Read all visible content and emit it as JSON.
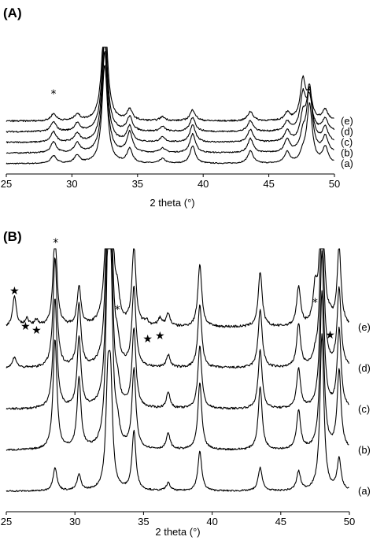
{
  "chart_data": [
    {
      "panel": "(A)",
      "type": "line",
      "xlabel": "2 theta (°)",
      "ylabel": "",
      "xlim": [
        25,
        50
      ],
      "xticks": [
        25,
        30,
        35,
        40,
        45,
        50
      ],
      "grid": false,
      "series": [
        {
          "name": "(a)",
          "offset": 0
        },
        {
          "name": "(b)",
          "offset": 1
        },
        {
          "name": "(c)",
          "offset": 2
        },
        {
          "name": "(d)",
          "offset": 3
        },
        {
          "name": "(e)",
          "offset": 4
        }
      ],
      "peaks": [
        {
          "x": 28.6,
          "h": [
            10,
            14,
            13,
            12,
            9
          ]
        },
        {
          "x": 30.4,
          "h": [
            10,
            12,
            11,
            10,
            8
          ]
        },
        {
          "x": 32.5,
          "h": [
            125,
            128,
            130,
            132,
            142
          ]
        },
        {
          "x": 34.4,
          "h": [
            18,
            26,
            20,
            18,
            14
          ]
        },
        {
          "x": 36.9,
          "h": [
            6,
            6,
            6,
            6,
            5
          ]
        },
        {
          "x": 39.2,
          "h": [
            22,
            24,
            22,
            18,
            14
          ]
        },
        {
          "x": 43.6,
          "h": [
            16,
            18,
            16,
            14,
            12
          ]
        },
        {
          "x": 46.4,
          "h": [
            14,
            16,
            14,
            12,
            10
          ]
        },
        {
          "x": 47.6,
          "h": [
            10,
            20,
            30,
            45,
            50
          ]
        },
        {
          "x": 48.1,
          "h": [
            74,
            80,
            68,
            40,
            30
          ]
        },
        {
          "x": 49.3,
          "h": [
            20,
            20,
            18,
            16,
            14
          ]
        }
      ],
      "annotations": [
        {
          "text": "*",
          "x": 28.6,
          "series": "(e)"
        }
      ]
    },
    {
      "panel": "(B)",
      "type": "line",
      "xlabel": "2 theta (°)",
      "ylabel": "",
      "xlim": [
        25,
        50
      ],
      "xticks": [
        25,
        30,
        35,
        40,
        45,
        50
      ],
      "grid": false,
      "series": [
        {
          "name": "(a)",
          "offset": 0
        },
        {
          "name": "(b)",
          "offset": 1
        },
        {
          "name": "(c)",
          "offset": 2
        },
        {
          "name": "(d)",
          "offset": 3
        },
        {
          "name": "(e)",
          "offset": 4
        }
      ],
      "peaks": [
        {
          "x": 25.6,
          "h": [
            0,
            0,
            0,
            14,
            38
          ]
        },
        {
          "x": 26.5,
          "h": [
            0,
            0,
            0,
            0,
            10
          ]
        },
        {
          "x": 27.2,
          "h": [
            0,
            0,
            0,
            0,
            8
          ]
        },
        {
          "x": 28.55,
          "h": [
            30,
            140,
            140,
            140,
            120
          ]
        },
        {
          "x": 30.3,
          "h": [
            20,
            90,
            90,
            80,
            50
          ]
        },
        {
          "x": 32.4,
          "h": [
            120,
            200,
            200,
            200,
            200
          ]
        },
        {
          "x": 32.6,
          "h": [
            120,
            200,
            200,
            200,
            200
          ]
        },
        {
          "x": 33.1,
          "h": [
            0,
            22,
            22,
            22,
            30
          ]
        },
        {
          "x": 34.3,
          "h": [
            75,
            100,
            100,
            100,
            100
          ]
        },
        {
          "x": 35.2,
          "h": [
            0,
            0,
            0,
            0,
            6
          ]
        },
        {
          "x": 36.2,
          "h": [
            0,
            0,
            0,
            0,
            10
          ]
        },
        {
          "x": 36.8,
          "h": [
            10,
            20,
            20,
            16,
            16
          ]
        },
        {
          "x": 39.1,
          "h": [
            50,
            85,
            80,
            80,
            80
          ]
        },
        {
          "x": 43.5,
          "h": [
            30,
            80,
            75,
            75,
            70
          ]
        },
        {
          "x": 46.3,
          "h": [
            24,
            50,
            50,
            55,
            50
          ]
        },
        {
          "x": 47.5,
          "h": [
            0,
            0,
            0,
            10,
            42
          ]
        },
        {
          "x": 48.0,
          "h": [
            200,
            200,
            200,
            200,
            200
          ]
        },
        {
          "x": 48.6,
          "h": [
            0,
            0,
            0,
            0,
            8
          ]
        },
        {
          "x": 49.25,
          "h": [
            40,
            100,
            100,
            100,
            100
          ]
        }
      ],
      "annotations": [
        {
          "text": "★",
          "x": 25.6
        },
        {
          "text": "★",
          "x": 26.4
        },
        {
          "text": "★",
          "x": 27.2
        },
        {
          "text": "*",
          "x": 28.6
        },
        {
          "text": "*",
          "x": 33.1
        },
        {
          "text": "★",
          "x": 35.3
        },
        {
          "text": "★",
          "x": 36.2
        },
        {
          "text": "*",
          "x": 47.5
        },
        {
          "text": "★",
          "x": 48.6
        }
      ]
    }
  ]
}
